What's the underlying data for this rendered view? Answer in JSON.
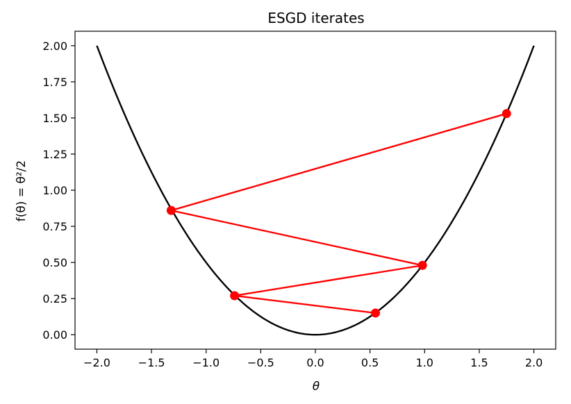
{
  "chart_data": {
    "type": "line",
    "title": "ESGD iterates",
    "xlabel": "θ",
    "ylabel": "f(θ) = θ²/2",
    "xlim": [
      -2.2,
      2.2
    ],
    "ylim": [
      -0.1,
      2.1
    ],
    "x_ticks": [
      "−2.0",
      "−1.5",
      "−1.0",
      "−0.5",
      "0.0",
      "0.5",
      "1.0",
      "1.5",
      "2.0"
    ],
    "x_tick_values": [
      -2.0,
      -1.5,
      -1.0,
      -0.5,
      0.0,
      0.5,
      1.0,
      1.5,
      2.0
    ],
    "y_ticks": [
      "0.00",
      "0.25",
      "0.50",
      "0.75",
      "1.00",
      "1.25",
      "1.50",
      "1.75",
      "2.00"
    ],
    "y_tick_values": [
      0.0,
      0.25,
      0.5,
      0.75,
      1.0,
      1.25,
      1.5,
      1.75,
      2.0
    ],
    "grid": false,
    "series": [
      {
        "role": "function-curve",
        "function": "theta^2/2",
        "x_range": [
          -2.0,
          2.0
        ],
        "color": "#000000"
      },
      {
        "role": "iterates",
        "color": "#ff0000",
        "x": [
          1.75,
          -1.32,
          0.98,
          -0.74,
          0.55
        ],
        "y": [
          1.53,
          0.86,
          0.48,
          0.27,
          0.15
        ]
      }
    ]
  }
}
